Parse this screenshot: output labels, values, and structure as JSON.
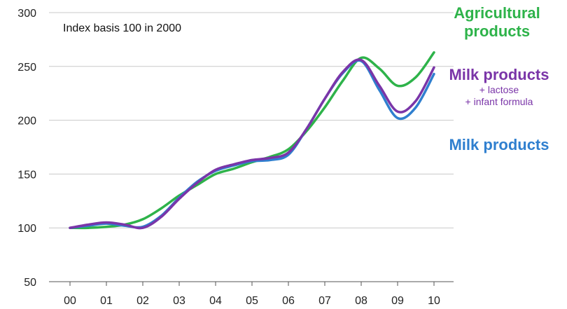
{
  "chart_data": {
    "type": "line",
    "annotation": "Index basis 100 in 2000",
    "xlabel": "",
    "ylabel": "",
    "categories": [
      "00",
      "01",
      "02",
      "03",
      "04",
      "05",
      "06",
      "07",
      "08",
      "09",
      "10"
    ],
    "x": [
      0,
      0.5,
      1,
      1.5,
      2,
      2.5,
      3,
      3.5,
      4,
      4.5,
      5,
      5.5,
      6,
      6.5,
      7,
      7.5,
      8,
      8.5,
      9,
      9.5,
      10
    ],
    "ylim": [
      50,
      300
    ],
    "yticks": [
      50,
      100,
      150,
      200,
      250,
      300
    ],
    "grid": true,
    "series": [
      {
        "name": "Agricultural products",
        "color": "#2eb34a",
        "values": [
          100,
          100,
          101,
          103,
          108,
          118,
          130,
          140,
          150,
          155,
          161,
          166,
          173,
          190,
          212,
          237,
          258,
          248,
          232,
          240,
          263
        ]
      },
      {
        "name": "Milk products + lactose + infant formula",
        "color": "#7a35a8",
        "values": [
          100,
          103,
          105,
          103,
          100,
          110,
          127,
          142,
          154,
          159,
          163,
          165,
          170,
          192,
          220,
          245,
          256,
          232,
          208,
          218,
          249
        ]
      },
      {
        "name": "Milk products",
        "color": "#2f7fcf",
        "values": [
          100,
          102,
          104,
          102,
          101,
          111,
          128,
          143,
          153,
          158,
          162,
          163,
          168,
          192,
          220,
          244,
          255,
          228,
          202,
          212,
          243
        ]
      }
    ]
  },
  "legend": {
    "agri_line1": "Agricultural",
    "agri_line2": "products",
    "milkplus_main": "Milk products",
    "milkplus_sub1": "+ lactose",
    "milkplus_sub2": "+ infant formula",
    "milk_main": "Milk products"
  },
  "colors": {
    "grid": "#c9c9c9",
    "axis": "#555555"
  }
}
